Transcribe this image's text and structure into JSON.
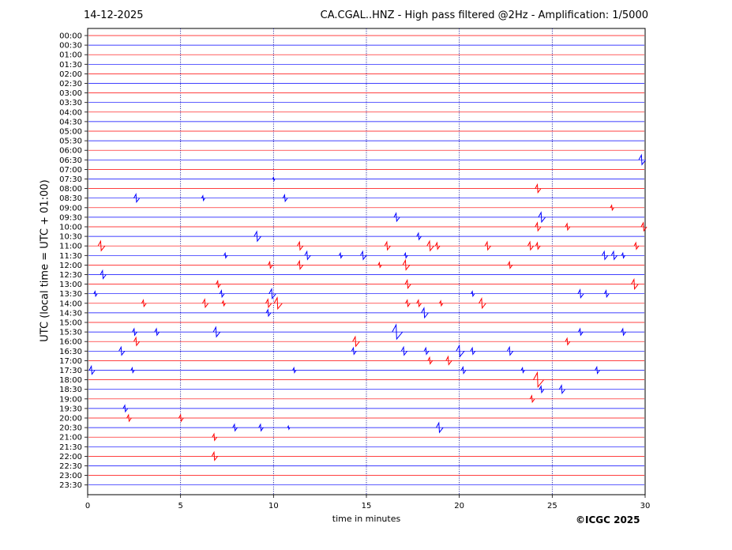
{
  "header": {
    "date": "14-12-2025",
    "title": "CA.CGAL..HNZ - High pass filtered @2Hz - Amplification: 1/5000"
  },
  "credit": "©ICGC 2025",
  "colors": {
    "trace_a": "#ff0000",
    "trace_b": "#0000ff",
    "grid": "#00008b"
  },
  "chart_data": {
    "type": "seismogram",
    "xlabel": "time in minutes",
    "ylabel": "UTC (local time = UTC + 01:00)",
    "xlim": [
      0,
      30
    ],
    "x_ticks": [
      0,
      5,
      10,
      15,
      20,
      25,
      30
    ],
    "y_ticks": [
      "00:00",
      "00:30",
      "01:00",
      "01:30",
      "02:00",
      "02:30",
      "03:00",
      "03:30",
      "04:00",
      "04:30",
      "05:00",
      "05:30",
      "06:00",
      "06:30",
      "07:00",
      "07:30",
      "08:00",
      "08:30",
      "09:00",
      "09:30",
      "10:00",
      "10:30",
      "11:00",
      "11:30",
      "12:00",
      "12:30",
      "13:00",
      "13:30",
      "14:00",
      "14:30",
      "15:00",
      "15:30",
      "16:00",
      "16:30",
      "17:00",
      "17:30",
      "18:00",
      "18:30",
      "19:00",
      "19:30",
      "20:00",
      "20:30",
      "21:00",
      "21:30",
      "22:00",
      "22:30",
      "23:00",
      "23:30"
    ],
    "vertical_gridlines": [
      5,
      10,
      15,
      20,
      25
    ],
    "events": [
      {
        "row": "06:30",
        "t": 29.8,
        "a": 6
      },
      {
        "row": "07:30",
        "t": 10.0,
        "a": 2
      },
      {
        "row": "08:00",
        "t": 24.2,
        "a": 5
      },
      {
        "row": "08:30",
        "t": 2.6,
        "a": 5
      },
      {
        "row": "08:30",
        "t": 6.2,
        "a": 3
      },
      {
        "row": "08:30",
        "t": 10.6,
        "a": 4
      },
      {
        "row": "09:00",
        "t": 28.2,
        "a": 3
      },
      {
        "row": "09:30",
        "t": 16.6,
        "a": 5
      },
      {
        "row": "09:30",
        "t": 24.4,
        "a": 6
      },
      {
        "row": "10:00",
        "t": 24.2,
        "a": 5
      },
      {
        "row": "10:00",
        "t": 25.8,
        "a": 4
      },
      {
        "row": "10:00",
        "t": 29.9,
        "a": 5
      },
      {
        "row": "10:30",
        "t": 9.1,
        "a": 6
      },
      {
        "row": "10:30",
        "t": 17.8,
        "a": 4
      },
      {
        "row": "11:00",
        "t": 0.7,
        "a": 6
      },
      {
        "row": "11:00",
        "t": 11.4,
        "a": 5
      },
      {
        "row": "11:00",
        "t": 16.1,
        "a": 5
      },
      {
        "row": "11:00",
        "t": 18.4,
        "a": 6
      },
      {
        "row": "11:00",
        "t": 18.8,
        "a": 4
      },
      {
        "row": "11:00",
        "t": 21.5,
        "a": 5
      },
      {
        "row": "11:00",
        "t": 23.8,
        "a": 5
      },
      {
        "row": "11:00",
        "t": 24.2,
        "a": 4
      },
      {
        "row": "11:00",
        "t": 29.5,
        "a": 4
      },
      {
        "row": "11:30",
        "t": 7.4,
        "a": 3
      },
      {
        "row": "11:30",
        "t": 11.8,
        "a": 5
      },
      {
        "row": "11:30",
        "t": 13.6,
        "a": 3
      },
      {
        "row": "11:30",
        "t": 14.8,
        "a": 5
      },
      {
        "row": "11:30",
        "t": 17.1,
        "a": 3
      },
      {
        "row": "11:30",
        "t": 27.8,
        "a": 5
      },
      {
        "row": "11:30",
        "t": 28.3,
        "a": 5
      },
      {
        "row": "11:30",
        "t": 28.8,
        "a": 3
      },
      {
        "row": "12:00",
        "t": 9.8,
        "a": 4
      },
      {
        "row": "12:00",
        "t": 11.4,
        "a": 5
      },
      {
        "row": "12:00",
        "t": 15.7,
        "a": 3
      },
      {
        "row": "12:00",
        "t": 17.1,
        "a": 6
      },
      {
        "row": "12:00",
        "t": 22.7,
        "a": 4
      },
      {
        "row": "12:30",
        "t": 0.8,
        "a": 5
      },
      {
        "row": "13:00",
        "t": 7.0,
        "a": 4
      },
      {
        "row": "13:00",
        "t": 17.2,
        "a": 5
      },
      {
        "row": "13:00",
        "t": 29.4,
        "a": 6
      },
      {
        "row": "13:30",
        "t": 0.4,
        "a": 3
      },
      {
        "row": "13:30",
        "t": 7.2,
        "a": 4
      },
      {
        "row": "13:30",
        "t": 9.9,
        "a": 6
      },
      {
        "row": "13:30",
        "t": 20.7,
        "a": 3
      },
      {
        "row": "13:30",
        "t": 26.5,
        "a": 5
      },
      {
        "row": "13:30",
        "t": 27.9,
        "a": 4
      },
      {
        "row": "14:00",
        "t": 3.0,
        "a": 4
      },
      {
        "row": "14:00",
        "t": 6.3,
        "a": 5
      },
      {
        "row": "14:00",
        "t": 7.3,
        "a": 3
      },
      {
        "row": "14:00",
        "t": 9.7,
        "a": 5
      },
      {
        "row": "14:00",
        "t": 10.2,
        "a": 7
      },
      {
        "row": "14:00",
        "t": 17.2,
        "a": 4
      },
      {
        "row": "14:00",
        "t": 17.8,
        "a": 4
      },
      {
        "row": "14:00",
        "t": 19.0,
        "a": 3
      },
      {
        "row": "14:00",
        "t": 21.2,
        "a": 6
      },
      {
        "row": "14:30",
        "t": 9.7,
        "a": 4
      },
      {
        "row": "14:30",
        "t": 18.1,
        "a": 6
      },
      {
        "row": "15:30",
        "t": 2.5,
        "a": 4
      },
      {
        "row": "15:30",
        "t": 3.7,
        "a": 4
      },
      {
        "row": "15:30",
        "t": 6.9,
        "a": 6
      },
      {
        "row": "15:30",
        "t": 16.6,
        "a": 9
      },
      {
        "row": "15:30",
        "t": 26.5,
        "a": 4
      },
      {
        "row": "15:30",
        "t": 28.8,
        "a": 4
      },
      {
        "row": "16:00",
        "t": 2.6,
        "a": 5
      },
      {
        "row": "16:00",
        "t": 14.4,
        "a": 6
      },
      {
        "row": "16:00",
        "t": 25.8,
        "a": 4
      },
      {
        "row": "16:30",
        "t": 1.8,
        "a": 5
      },
      {
        "row": "16:30",
        "t": 14.3,
        "a": 4
      },
      {
        "row": "16:30",
        "t": 17.0,
        "a": 5
      },
      {
        "row": "16:30",
        "t": 18.2,
        "a": 4
      },
      {
        "row": "16:30",
        "t": 20.0,
        "a": 7
      },
      {
        "row": "16:30",
        "t": 20.7,
        "a": 4
      },
      {
        "row": "16:30",
        "t": 22.7,
        "a": 5
      },
      {
        "row": "17:00",
        "t": 18.4,
        "a": 4
      },
      {
        "row": "17:00",
        "t": 19.4,
        "a": 5
      },
      {
        "row": "17:30",
        "t": 0.2,
        "a": 5
      },
      {
        "row": "17:30",
        "t": 2.4,
        "a": 3
      },
      {
        "row": "17:30",
        "t": 11.1,
        "a": 3
      },
      {
        "row": "17:30",
        "t": 20.2,
        "a": 4
      },
      {
        "row": "17:30",
        "t": 23.4,
        "a": 3
      },
      {
        "row": "17:30",
        "t": 27.4,
        "a": 4
      },
      {
        "row": "18:00",
        "t": 24.2,
        "a": 9
      },
      {
        "row": "18:30",
        "t": 24.4,
        "a": 4
      },
      {
        "row": "18:30",
        "t": 25.5,
        "a": 5
      },
      {
        "row": "19:00",
        "t": 23.9,
        "a": 4
      },
      {
        "row": "19:30",
        "t": 2.0,
        "a": 4
      },
      {
        "row": "20:00",
        "t": 2.2,
        "a": 4
      },
      {
        "row": "20:00",
        "t": 5.0,
        "a": 4
      },
      {
        "row": "20:30",
        "t": 7.9,
        "a": 4
      },
      {
        "row": "20:30",
        "t": 9.3,
        "a": 4
      },
      {
        "row": "20:30",
        "t": 10.8,
        "a": 2
      },
      {
        "row": "20:30",
        "t": 18.9,
        "a": 6
      },
      {
        "row": "21:00",
        "t": 6.8,
        "a": 4
      },
      {
        "row": "22:00",
        "t": 6.8,
        "a": 5
      }
    ]
  }
}
